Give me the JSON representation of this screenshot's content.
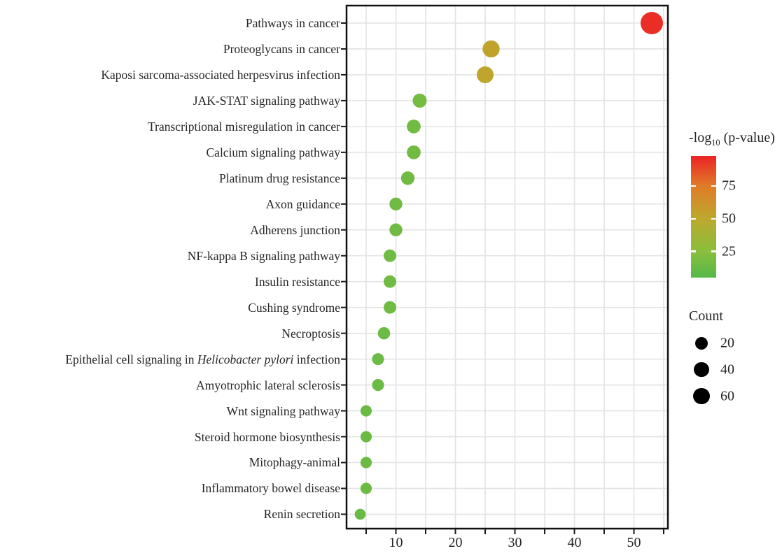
{
  "chart_data": {
    "type": "scatter",
    "subtype": "horizontal-dot-plot",
    "title": "",
    "xlabel": "",
    "ylabel": "",
    "grid": true,
    "x_range": [
      1.7,
      55.7
    ],
    "x_ticks_labeled": [
      10,
      20,
      30,
      40,
      50
    ],
    "x_ticks_all": [
      5,
      10,
      15,
      20,
      25,
      30,
      35,
      40,
      45,
      50,
      55
    ],
    "pathways": [
      {
        "label": "Pathways in cancer",
        "count": 53,
        "neglog10_p": 95
      },
      {
        "label": "Proteoglycans in cancer",
        "count": 26,
        "neglog10_p": 53
      },
      {
        "label": "Kaposi sarcoma-associated herpesvirus infection",
        "count": 25,
        "neglog10_p": 52
      },
      {
        "label": "JAK-STAT signaling pathway",
        "count": 14,
        "neglog10_p": 17
      },
      {
        "label": "Transcriptional misregulation in cancer",
        "count": 13,
        "neglog10_p": 16
      },
      {
        "label": "Calcium signaling pathway",
        "count": 13,
        "neglog10_p": 16
      },
      {
        "label": "Platinum drug resistance",
        "count": 12,
        "neglog10_p": 16
      },
      {
        "label": "Axon guidance",
        "count": 10,
        "neglog10_p": 15
      },
      {
        "label": "Adherens junction",
        "count": 10,
        "neglog10_p": 15
      },
      {
        "label": "NF-kappa B signaling pathway",
        "count": 9,
        "neglog10_p": 15
      },
      {
        "label": "Insulin resistance",
        "count": 9,
        "neglog10_p": 15
      },
      {
        "label": "Cushing syndrome",
        "count": 9,
        "neglog10_p": 15
      },
      {
        "label": "Necroptosis",
        "count": 8,
        "neglog10_p": 14
      },
      {
        "label": "Epithelial cell signaling in *Helicobacter pylori* infection",
        "count": 7,
        "neglog10_p": 14
      },
      {
        "label": "Amyotrophic lateral sclerosis",
        "count": 7,
        "neglog10_p": 14
      },
      {
        "label": "Wnt signaling pathway",
        "count": 5,
        "neglog10_p": 13
      },
      {
        "label": "Steroid hormone biosynthesis",
        "count": 5,
        "neglog10_p": 13
      },
      {
        "label": "Mitophagy-animal",
        "count": 5,
        "neglog10_p": 13
      },
      {
        "label": "Inflammatory bowel disease",
        "count": 5,
        "neglog10_p": 13
      },
      {
        "label": "Renin secretion",
        "count": 4,
        "neglog10_p": 12
      }
    ],
    "color_legend": {
      "title_main": "-log",
      "title_sub": "10",
      "title_rest": " (p-value)",
      "ticks": [
        75,
        50,
        25
      ],
      "bar_top_value": 98,
      "bar_bottom_value": 5,
      "gradient_stops": [
        {
          "value": 5,
          "color": "#54b84a"
        },
        {
          "value": 25,
          "color": "#8abe3c"
        },
        {
          "value": 50,
          "color": "#bca92e"
        },
        {
          "value": 75,
          "color": "#e07b28"
        },
        {
          "value": 98,
          "color": "#ec2326"
        }
      ]
    },
    "size_legend": {
      "title": "Count",
      "entries": [
        20,
        40,
        60
      ],
      "dot_color": "#000000"
    },
    "style_colors": {
      "panel_border": "#111111",
      "gridline": "#e3e3e3",
      "tick": "#1a1a1a",
      "text": "#262626"
    }
  }
}
